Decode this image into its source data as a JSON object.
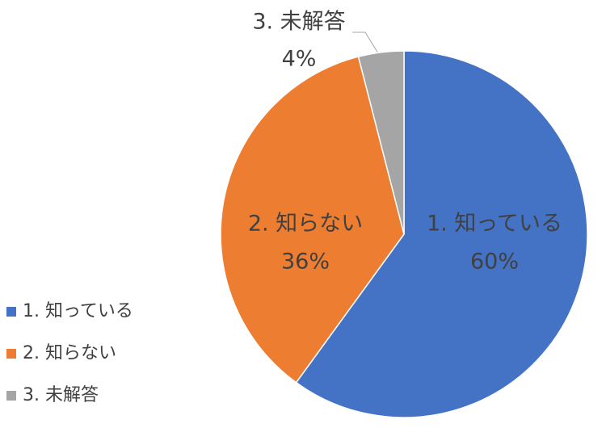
{
  "chart_data": {
    "type": "pie",
    "categories": [
      "1. 知っている",
      "2. 知らない",
      "3. 未解答"
    ],
    "values": [
      60,
      36,
      4
    ],
    "value_labels": [
      "60%",
      "36%",
      "4%"
    ],
    "colors": [
      "#4472c4",
      "#ed7d31",
      "#a5a5a5"
    ],
    "legend": "left"
  }
}
